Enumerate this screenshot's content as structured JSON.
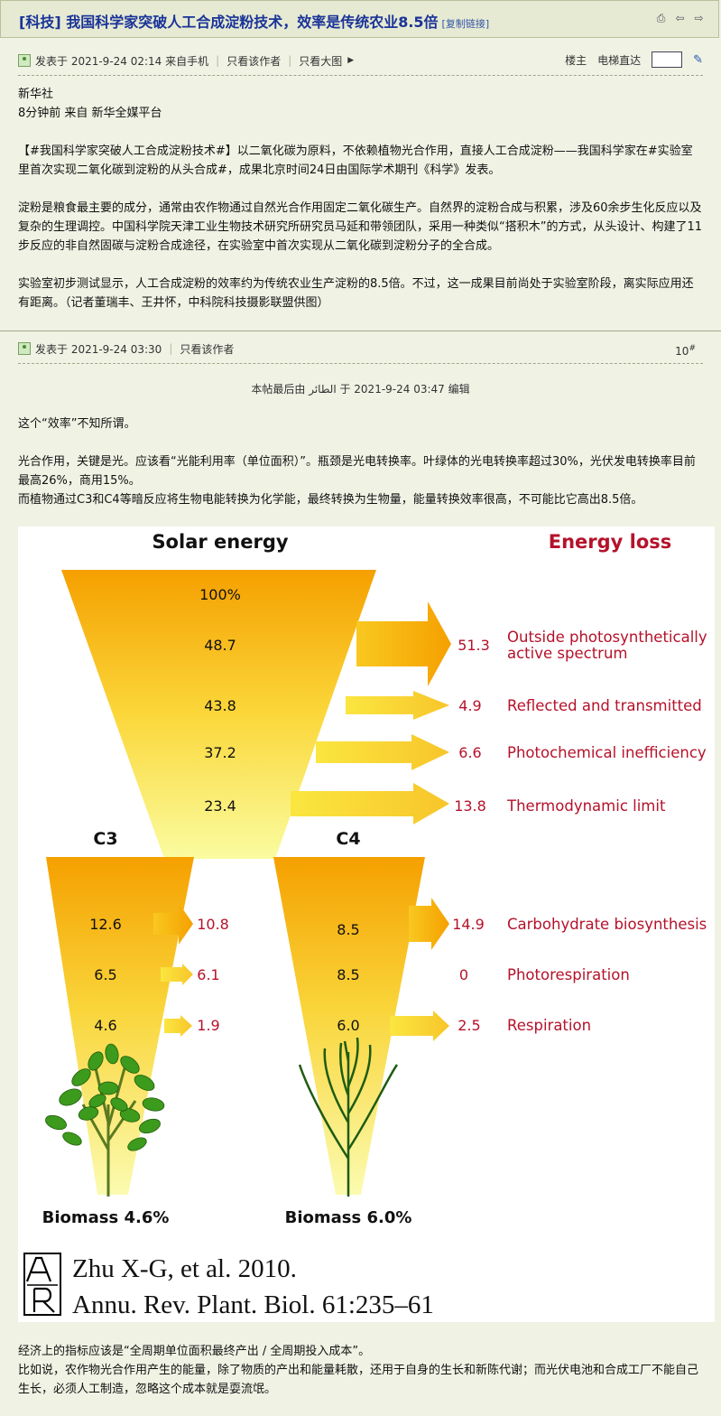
{
  "thread": {
    "title": "[科技] 我国科学家突破人工合成淀粉技术，效率是传统农业8.5倍",
    "copy_link": "[复制链接]"
  },
  "post1": {
    "meta": "发表于 2021-9-24 02:14 来自手机",
    "only_author": "只看该作者",
    "big_image": "只看大图",
    "floor_label": "楼主",
    "jump_label": "电梯直达",
    "lines": [
      "新华社",
      "8分钟前 来自 新华全媒平台",
      "",
      "【#我国科学家突破人工合成淀粉技术#】以二氧化碳为原料，不依赖植物光合作用，直接人工合成淀粉——我国科学家在#实验室里首次实现二氧化碳到淀粉的从头合成#，成果北京时间24日由国际学术期刊《科学》发表。",
      "",
      "淀粉是粮食最主要的成分，通常由农作物通过自然光合作用固定二氧化碳生产。自然界的淀粉合成与积累，涉及60余步生化反应以及复杂的生理调控。中国科学院天津工业生物技术研究所研究员马延和带领团队，采用一种类似“搭积木”的方式，从头设计、构建了11步反应的非自然固碳与淀粉合成途径，在实验室中首次实现从二氧化碳到淀粉分子的全合成。",
      "",
      "实验室初步测试显示，人工合成淀粉的效率约为传统农业生产淀粉的8.5倍。不过，这一成果目前尚处于实验室阶段，离实际应用还有距离。（记者董瑞丰、王井怀，中科院科技摄影联盟供图）"
    ]
  },
  "post2": {
    "meta": "发表于 2021-9-24 03:30",
    "only_author": "只看该作者",
    "floor_num": "10",
    "floor_mark": "#",
    "edit_note": "本帖最后由 الطائر 于 2021-9-24 03:47 编辑",
    "lines_top": [
      "这个“效率”不知所谓。",
      "",
      "光合作用，关键是光。应该看“光能利用率（单位面积）”。瓶颈是光电转换率。叶绿体的光电转换率超过30%，光伏发电转换率目前最高26%，商用15%。",
      "而植物通过C3和C4等暗反应将生物电能转换为化学能，最终转换为生物量，能量转换效率很高，不可能比它高出8.5倍。"
    ],
    "lines_bottom": [
      "经济上的指标应该是“全周期单位面积最终产出 / 全周期投入成本”。",
      "比如说，农作物光合作用产生的能量，除了物质的产出和能量耗散，还用于自身的生长和新陈代谢；而光伏电池和合成工厂不能自己生长，必须人工制造，忽略这个成本就是耍流氓。"
    ]
  },
  "figure": {
    "solar_title": "Solar energy",
    "loss_title": "Energy loss",
    "funnel_values": [
      "100%",
      "48.7",
      "43.8",
      "37.2",
      "23.4"
    ],
    "losses": [
      {
        "value": "51.3",
        "label_lines": [
          "Outside photosynthetically",
          "active spectrum"
        ]
      },
      {
        "value": "4.9",
        "label_lines": [
          "Reflected and transmitted"
        ]
      },
      {
        "value": "6.6",
        "label_lines": [
          "Photochemical inefficiency"
        ]
      },
      {
        "value": "13.8",
        "label_lines": [
          "Thermodynamic limit"
        ]
      }
    ],
    "c3": {
      "label": "C3",
      "values": [
        "12.6",
        "6.5",
        "4.6"
      ],
      "losses": [
        "10.8",
        "6.1",
        "1.9"
      ],
      "biomass": "Biomass 4.6%"
    },
    "c4": {
      "label": "C4",
      "values": [
        "8.5",
        "8.5",
        "6.0"
      ],
      "losses": [
        "14.9",
        "0",
        "2.5"
      ],
      "biomass": "Biomass 6.0%"
    },
    "c4_loss_labels": [
      "Carbohydrate biosynthesis",
      "Photorespiration",
      "Respiration"
    ],
    "citation_line1": "Zhu X-G, et al. 2010.",
    "citation_line2": "Annu. Rev. Plant. Biol. 61:235–61",
    "colors": {
      "loss_red": "#b5122a",
      "funnel_top": "#f5a000",
      "funnel_bottom": "#fafca0"
    }
  }
}
